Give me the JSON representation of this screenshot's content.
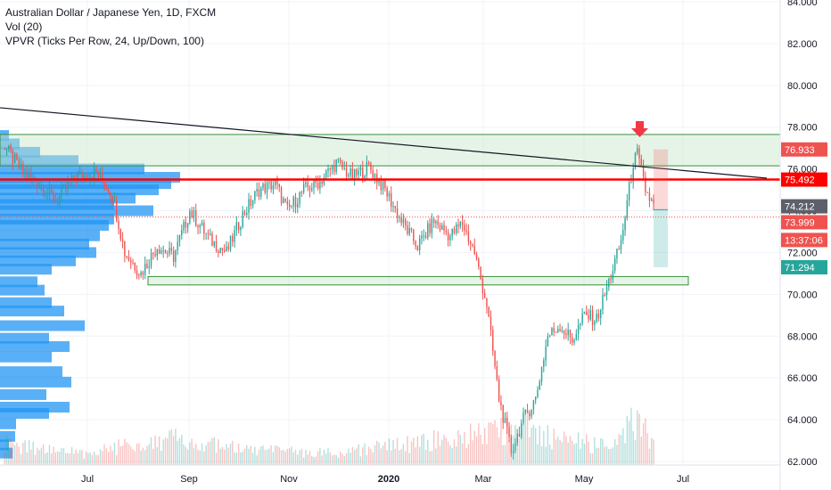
{
  "legend": {
    "title": "Australian Dollar / Japanese Yen, 1D, FXCM",
    "vol": "Vol (20)",
    "vpvr": "VPVR (Ticks Per Row, 24, Up/Down, 100)"
  },
  "colors": {
    "up": "#26a69a",
    "down": "#ef5350",
    "volume_profile": "#2196f3",
    "zone_fill": "#c8e6c9",
    "zone_border": "#388e3c",
    "resistance": "#ff0000",
    "trendline": "#131722"
  },
  "chart_data": {
    "type": "candlestick",
    "symbol": "Australian Dollar / Japanese Yen",
    "interval": "1D",
    "ylim": [
      61.8,
      84.0
    ],
    "y_ticks": [
      "84.000",
      "82.000",
      "80.000",
      "78.000",
      "76.000",
      "74.000",
      "72.000",
      "70.000",
      "68.000",
      "66.000",
      "64.000",
      "62.000"
    ],
    "x_ticks": [
      {
        "label": "Jul",
        "bold": false
      },
      {
        "label": "Sep",
        "bold": false
      },
      {
        "label": "Nov",
        "bold": false
      },
      {
        "label": "2020",
        "bold": true
      },
      {
        "label": "Mar",
        "bold": false
      },
      {
        "label": "May",
        "bold": false
      },
      {
        "label": "Jul",
        "bold": false
      }
    ],
    "price_path": [
      [
        77.2,
        0
      ],
      [
        75.8,
        10
      ],
      [
        75.3,
        18
      ],
      [
        74.5,
        26
      ],
      [
        75.6,
        36
      ],
      [
        75.8,
        46
      ],
      [
        74.8,
        54
      ],
      [
        72.0,
        60
      ],
      [
        71.0,
        68
      ],
      [
        72.3,
        76
      ],
      [
        71.8,
        84
      ],
      [
        74.0,
        92
      ],
      [
        72.6,
        102
      ],
      [
        72.0,
        110
      ],
      [
        73.8,
        118
      ],
      [
        75.0,
        126
      ],
      [
        75.3,
        134
      ],
      [
        74.0,
        140
      ],
      [
        75.0,
        148
      ],
      [
        75.4,
        156
      ],
      [
        76.3,
        164
      ],
      [
        75.6,
        172
      ],
      [
        76.1,
        180
      ],
      [
        75.0,
        188
      ],
      [
        73.5,
        196
      ],
      [
        72.3,
        204
      ],
      [
        73.5,
        212
      ],
      [
        72.8,
        220
      ],
      [
        73.4,
        226
      ],
      [
        72.0,
        232
      ],
      [
        69.5,
        238
      ],
      [
        65.0,
        244
      ],
      [
        62.5,
        250
      ],
      [
        64.0,
        256
      ],
      [
        65.0,
        262
      ],
      [
        68.0,
        268
      ],
      [
        68.5,
        274
      ],
      [
        67.8,
        280
      ],
      [
        69.0,
        286
      ],
      [
        68.8,
        292
      ],
      [
        70.6,
        298
      ],
      [
        72.5,
        304
      ],
      [
        76.3,
        310
      ],
      [
        76.7,
        312
      ],
      [
        75.0,
        316
      ],
      [
        74.2,
        320
      ]
    ],
    "volume_shape": [
      [
        0,
        0.35
      ],
      [
        40,
        0.2
      ],
      [
        80,
        0.45
      ],
      [
        120,
        0.25
      ],
      [
        160,
        0.2
      ],
      [
        200,
        0.35
      ],
      [
        240,
        0.55
      ],
      [
        255,
        0.7
      ],
      [
        270,
        0.45
      ],
      [
        300,
        0.3
      ],
      [
        312,
        0.8
      ],
      [
        320,
        0.3
      ]
    ],
    "volume_profile": [
      [
        62.4,
        14
      ],
      [
        62.8,
        10
      ],
      [
        63.2,
        17
      ],
      [
        63.8,
        18
      ],
      [
        64.3,
        55
      ],
      [
        64.6,
        78
      ],
      [
        65.2,
        52
      ],
      [
        65.8,
        80
      ],
      [
        66.3,
        70
      ],
      [
        67.0,
        58
      ],
      [
        67.5,
        78
      ],
      [
        67.9,
        55
      ],
      [
        68.5,
        95
      ],
      [
        69.2,
        72
      ],
      [
        69.6,
        58
      ],
      [
        70.2,
        50
      ],
      [
        70.6,
        42
      ],
      [
        71.2,
        58
      ],
      [
        71.6,
        85
      ],
      [
        72.0,
        108
      ],
      [
        72.4,
        100
      ],
      [
        72.8,
        112
      ],
      [
        73.3,
        122
      ],
      [
        73.6,
        128
      ],
      [
        74.0,
        172
      ],
      [
        74.3,
        128
      ],
      [
        74.6,
        152
      ],
      [
        75.0,
        178
      ],
      [
        75.3,
        192
      ],
      [
        75.6,
        202
      ],
      [
        76.0,
        162
      ],
      [
        76.4,
        88
      ],
      [
        76.8,
        45
      ],
      [
        77.2,
        22
      ],
      [
        77.6,
        10
      ]
    ],
    "green_zone_top": [
      77.65,
      76.15
    ],
    "green_zone_bottom": [
      70.85,
      70.45
    ],
    "resistance_level": 75.492,
    "dotted_level": 73.7,
    "trendline": [
      [
        79.1,
        0
      ],
      [
        75.5,
        360
      ]
    ],
    "short_position": {
      "entry": 74.05,
      "stop": 76.933,
      "target": 71.294
    },
    "price_tags": [
      {
        "value": "76.933",
        "level": 76.933,
        "color": "#ef5350"
      },
      {
        "value": "75.492",
        "level": 75.492,
        "color": "#ff0000"
      },
      {
        "value": "74.212",
        "level": 74.212,
        "color": "#5d606b"
      },
      {
        "value": "73.999",
        "level": 73.45,
        "color": "#ef5350"
      },
      {
        "value": "13:37:06",
        "level": 72.6,
        "color": "#ef5350"
      },
      {
        "value": "71.294",
        "level": 71.294,
        "color": "#26a69a"
      }
    ]
  }
}
